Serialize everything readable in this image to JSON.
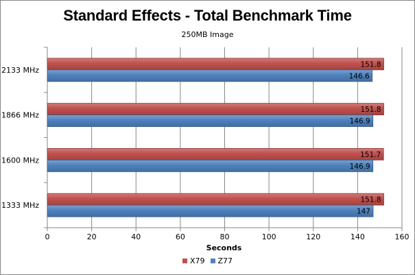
{
  "chart_data": {
    "type": "bar",
    "orientation": "horizontal",
    "title": "Standard Effects - Total Benchmark Time",
    "subtitle": "250MB Image",
    "xlabel": "Seconds",
    "ylabel": "",
    "xlim": [
      0,
      160
    ],
    "xticks": [
      "0",
      "20",
      "40",
      "60",
      "80",
      "100",
      "120",
      "140",
      "160"
    ],
    "grid": true,
    "legend_position": "bottom",
    "categories": [
      "2133 MHz",
      "1866 MHz",
      "1600 MHz",
      "1333 MHz"
    ],
    "series": [
      {
        "name": "X79",
        "color": "#c0504d",
        "values": [
          151.8,
          151.8,
          151.7,
          151.8
        ],
        "labels": [
          "151.8",
          "151.8",
          "151.7",
          "151.8"
        ]
      },
      {
        "name": "Z77",
        "color": "#4f81bd",
        "values": [
          146.6,
          146.9,
          146.9,
          147
        ],
        "labels": [
          "146.6",
          "146.9",
          "146.9",
          "147"
        ]
      }
    ]
  }
}
